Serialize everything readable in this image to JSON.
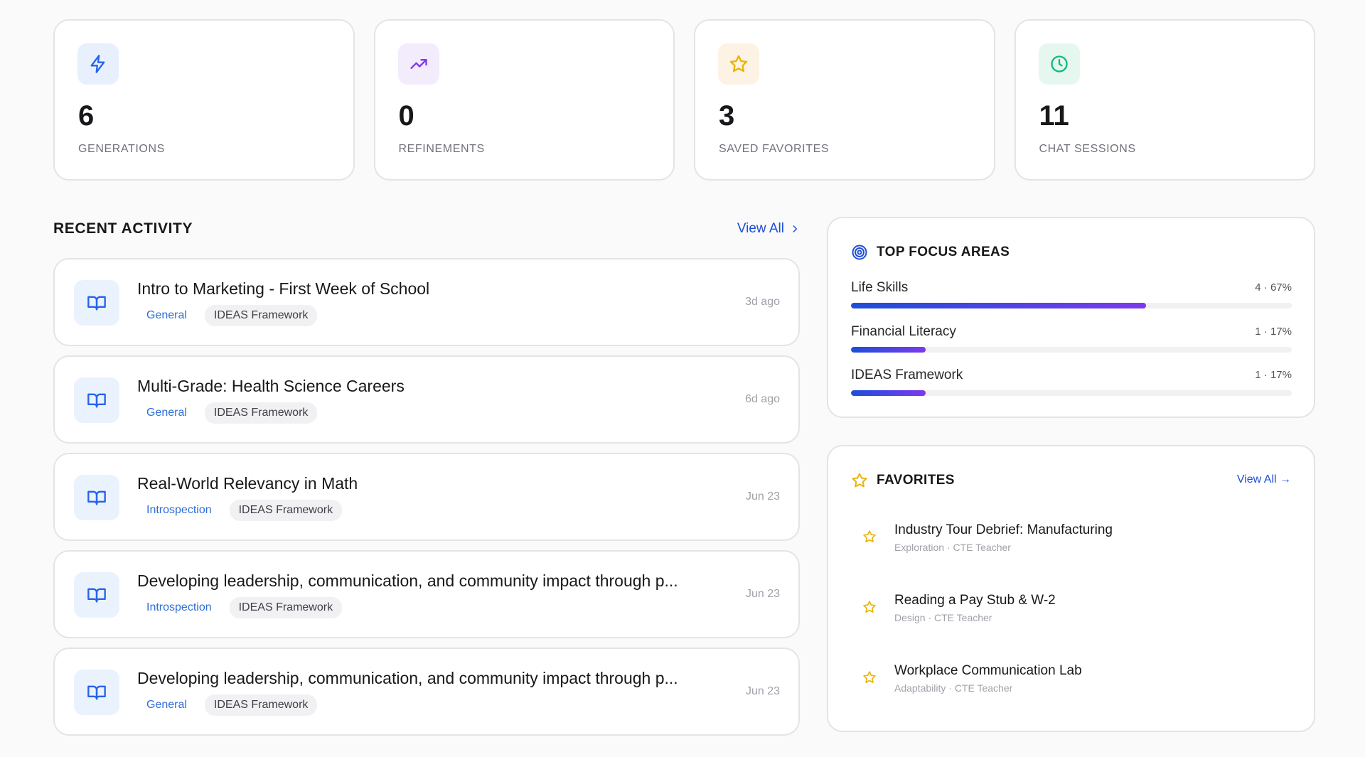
{
  "stats": [
    {
      "value": "6",
      "label": "GENERATIONS",
      "icon": "bolt-icon",
      "tile_bg": "#e8f0fd",
      "icon_color": "#2563eb"
    },
    {
      "value": "0",
      "label": "REFINEMENTS",
      "icon": "trending-up-icon",
      "tile_bg": "#f3ecfd",
      "icon_color": "#7c3aed"
    },
    {
      "value": "3",
      "label": "SAVED FAVORITES",
      "icon": "star-icon",
      "tile_bg": "#fdf3e4",
      "icon_color": "#eab308"
    },
    {
      "value": "11",
      "label": "CHAT SESSIONS",
      "icon": "clock-icon",
      "tile_bg": "#e6f7ef",
      "icon_color": "#10b981"
    }
  ],
  "recent_activity": {
    "title": "RECENT ACTIVITY",
    "view_all": "View All",
    "items": [
      {
        "title": "Intro to Marketing - First Week of School",
        "category": "General",
        "framework": "IDEAS Framework",
        "time": "3d ago"
      },
      {
        "title": "Multi-Grade: Health Science Careers",
        "category": "General",
        "framework": "IDEAS Framework",
        "time": "6d ago"
      },
      {
        "title": "Real-World Relevancy in Math",
        "category": "Introspection",
        "framework": "IDEAS Framework",
        "time": "Jun 23"
      },
      {
        "title": "Developing leadership, communication, and community impact through p...",
        "category": "Introspection",
        "framework": "IDEAS Framework",
        "time": "Jun 23"
      },
      {
        "title": "Developing leadership, communication, and community impact through p...",
        "category": "General",
        "framework": "IDEAS Framework",
        "time": "Jun 23"
      }
    ]
  },
  "focus_areas": {
    "title": "TOP FOCUS AREAS",
    "items": [
      {
        "name": "Life Skills",
        "stat": "4 · 67%",
        "percent": 67
      },
      {
        "name": "Financial Literacy",
        "stat": "1 · 17%",
        "percent": 17
      },
      {
        "name": "IDEAS Framework",
        "stat": "1 · 17%",
        "percent": 17
      }
    ]
  },
  "favorites": {
    "title": "FAVORITES",
    "view_all": "View All →",
    "items": [
      {
        "title": "Industry Tour Debrief: Manufacturing",
        "subtitle": "Exploration · CTE Teacher"
      },
      {
        "title": "Reading a Pay Stub & W-2",
        "subtitle": "Design · CTE Teacher"
      },
      {
        "title": "Workplace Communication Lab",
        "subtitle": "Adaptability · CTE Teacher"
      }
    ]
  },
  "colors": {
    "accent": "#1d4ed8",
    "gradient_end": "#7c3aed",
    "star": "#eab308"
  }
}
